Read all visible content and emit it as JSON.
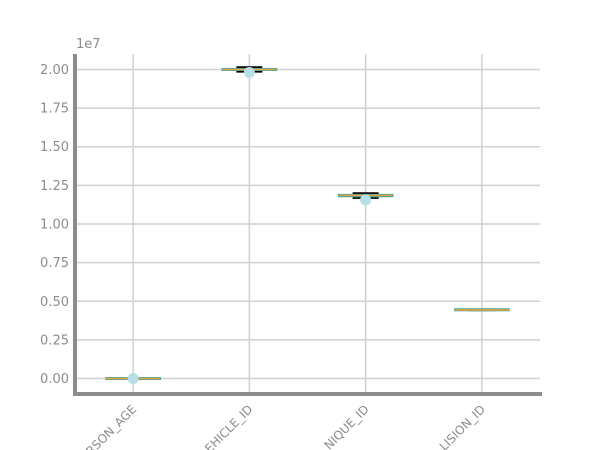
{
  "chart_data": {
    "type": "box",
    "offset_text": "1e7",
    "categories": [
      "PERSON_AGE",
      "VEHICLE_ID",
      "UNIQUE_ID",
      "COLLISION_ID"
    ],
    "x_tick_labels": [
      "RSON_AGE",
      "EHICLE_ID",
      "NIQUE_ID",
      "LISION_ID"
    ],
    "ylim": [
      -0.1,
      2.1
    ],
    "yticks": [
      0.0,
      0.25,
      0.5,
      0.75,
      1.0,
      1.25,
      1.5,
      1.75,
      2.0
    ],
    "ytick_labels": [
      "0.00",
      "0.25",
      "0.50",
      "0.75",
      "1.00",
      "1.25",
      "1.50",
      "1.75",
      "2.00"
    ],
    "grid": true,
    "boxes": [
      {
        "name": "PERSON_AGE",
        "whisker_low": 0.0,
        "q1": 0.0,
        "median": 0.0,
        "q3": 0.0,
        "whisker_high": 0.0,
        "outliers": [
          0.0
        ]
      },
      {
        "name": "VEHICLE_ID",
        "whisker_low": 1.985,
        "q1": 1.995,
        "median": 2.0,
        "q3": 2.005,
        "whisker_high": 2.015,
        "outliers": [
          1.98
        ]
      },
      {
        "name": "UNIQUE_ID",
        "whisker_low": 1.168,
        "q1": 1.178,
        "median": 1.185,
        "q3": 1.19,
        "whisker_high": 1.2,
        "outliers": [
          1.155
        ]
      },
      {
        "name": "COLLISION_ID",
        "whisker_low": 0.442,
        "q1": 0.443,
        "median": 0.444,
        "q3": 0.445,
        "whisker_high": 0.446,
        "outliers": []
      }
    ],
    "colors": {
      "box": "#2ca6a4",
      "median": "#f0a040",
      "whisker": "#000000",
      "outlier": "#b9dfe6",
      "grid": "#d0d0d0",
      "axis": "#8c8c8c"
    }
  }
}
